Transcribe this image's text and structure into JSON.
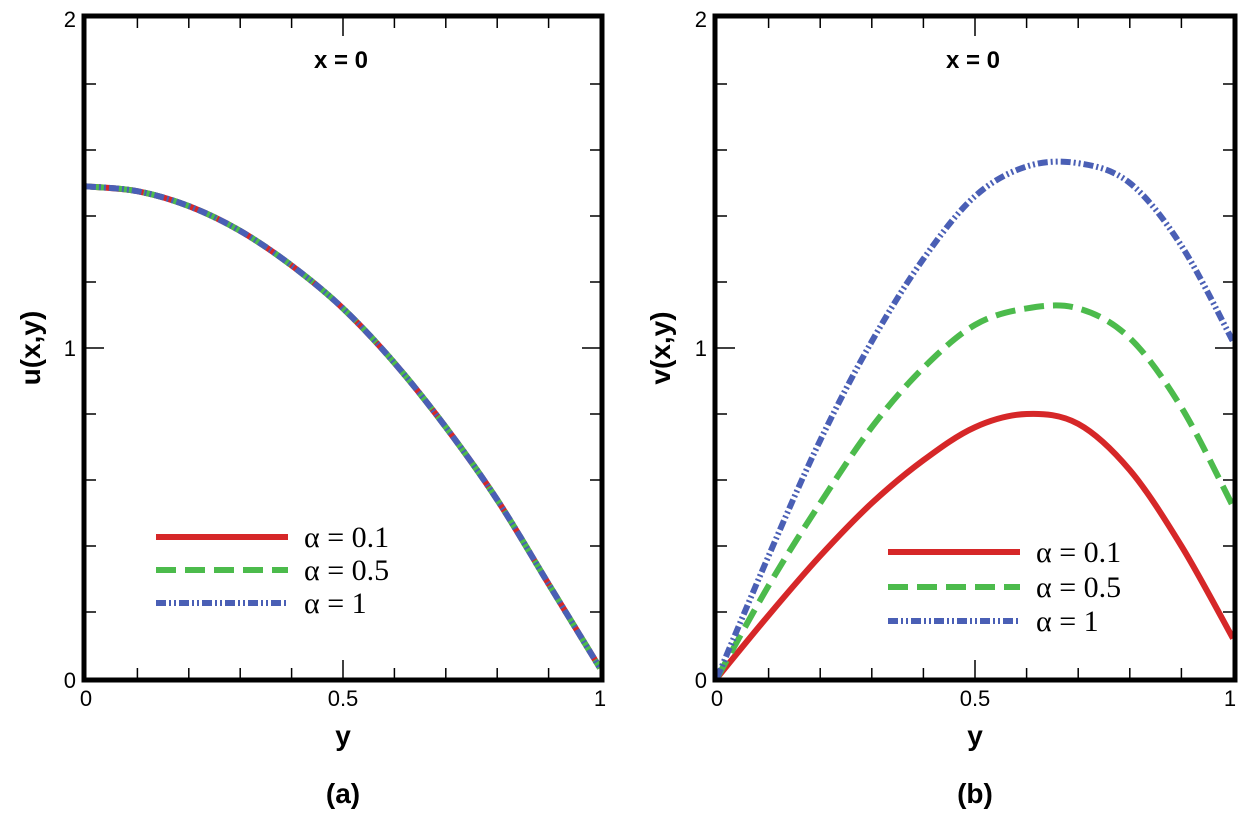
{
  "chart_data": [
    {
      "type": "line",
      "panel_label": "(a)",
      "annotation": "x = 0",
      "xlabel": "y",
      "ylabel": "u(x,y)",
      "xlim": [
        0,
        1
      ],
      "ylim": [
        0,
        2
      ],
      "x_ticks": [
        0,
        0.5,
        1
      ],
      "x_tick_labels": [
        "0",
        "0.5",
        "1"
      ],
      "y_ticks": [
        0,
        1,
        2
      ],
      "y_tick_labels": [
        "0",
        "1",
        "2"
      ],
      "grid": false,
      "legend_position": "bottom-left",
      "x": [
        0,
        0.1,
        0.2,
        0.3,
        0.4,
        0.5,
        0.6,
        0.7,
        0.8,
        0.9,
        1.0
      ],
      "series": [
        {
          "name": "α = 0.1",
          "color": "#d62728",
          "style": "solid",
          "values": [
            1.49,
            1.475,
            1.43,
            1.355,
            1.25,
            1.12,
            0.955,
            0.76,
            0.54,
            0.285,
            0.03
          ]
        },
        {
          "name": "α = 0.5",
          "color": "#4cbb4c",
          "style": "dashed",
          "values": [
            1.49,
            1.475,
            1.43,
            1.355,
            1.25,
            1.12,
            0.955,
            0.76,
            0.54,
            0.285,
            0.03
          ]
        },
        {
          "name": "α = 1",
          "color": "#4a5fb5",
          "style": "dashdotdot",
          "values": [
            1.49,
            1.475,
            1.43,
            1.355,
            1.25,
            1.12,
            0.955,
            0.76,
            0.54,
            0.285,
            0.03
          ]
        }
      ]
    },
    {
      "type": "line",
      "panel_label": "(b)",
      "annotation": "x = 0",
      "xlabel": "y",
      "ylabel": "v(x,y)",
      "xlim": [
        0,
        1
      ],
      "ylim": [
        0,
        2
      ],
      "x_ticks": [
        0,
        0.5,
        1
      ],
      "x_tick_labels": [
        "0",
        "0.5",
        "1"
      ],
      "y_ticks": [
        0,
        1,
        2
      ],
      "y_tick_labels": [
        "0",
        "1",
        "2"
      ],
      "grid": false,
      "legend_position": "bottom-right",
      "x": [
        0,
        0.1,
        0.2,
        0.3,
        0.4,
        0.5,
        0.6,
        0.7,
        0.8,
        0.9,
        1.0
      ],
      "series": [
        {
          "name": "α = 0.1",
          "color": "#d62728",
          "style": "solid",
          "values": [
            0,
            0.19,
            0.37,
            0.53,
            0.66,
            0.76,
            0.8,
            0.77,
            0.63,
            0.4,
            0.12
          ]
        },
        {
          "name": "α = 0.5",
          "color": "#4cbb4c",
          "style": "dashed",
          "values": [
            0,
            0.28,
            0.53,
            0.76,
            0.94,
            1.07,
            1.12,
            1.12,
            1.03,
            0.82,
            0.52
          ]
        },
        {
          "name": "α = 1",
          "color": "#4a5fb5",
          "style": "dashdotdot",
          "values": [
            0,
            0.37,
            0.72,
            1.02,
            1.27,
            1.46,
            1.55,
            1.56,
            1.5,
            1.31,
            1.02
          ]
        }
      ]
    }
  ]
}
